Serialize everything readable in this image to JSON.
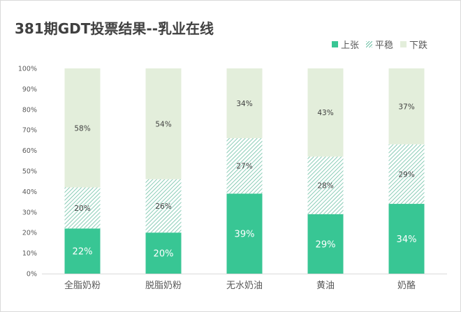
{
  "title": "381期GDT投票结果--乳业在线",
  "legend": {
    "rise": "上张",
    "flat": "平稳",
    "fall": "下跌"
  },
  "colors": {
    "rise": "#38c694",
    "flat": "#6cbfa4",
    "fall": "#e3eedb",
    "axis_text": "#595959"
  },
  "chart_data": {
    "type": "bar",
    "stacked": true,
    "title": "381期GDT投票结果--乳业在线",
    "categories": [
      "全脂奶粉",
      "脱脂奶粉",
      "无水奶油",
      "黄油",
      "奶酪"
    ],
    "series": [
      {
        "name": "上张",
        "values": [
          22,
          20,
          39,
          29,
          34
        ],
        "labels": [
          "22%",
          "20%",
          "39%",
          "29%",
          "34%"
        ]
      },
      {
        "name": "平稳",
        "values": [
          20,
          26,
          27,
          28,
          29
        ],
        "labels": [
          "20%",
          "26%",
          "27%",
          "28%",
          "29%"
        ]
      },
      {
        "name": "下跌",
        "values": [
          58,
          54,
          34,
          43,
          37
        ],
        "labels": [
          "58%",
          "54%",
          "34%",
          "43%",
          "37%"
        ]
      }
    ],
    "yticks": [
      "0%",
      "10%",
      "20%",
      "30%",
      "40%",
      "50%",
      "60%",
      "70%",
      "80%",
      "90%",
      "100%"
    ],
    "ylim": [
      0,
      100
    ],
    "grid": false,
    "legend_position": "top-right"
  }
}
